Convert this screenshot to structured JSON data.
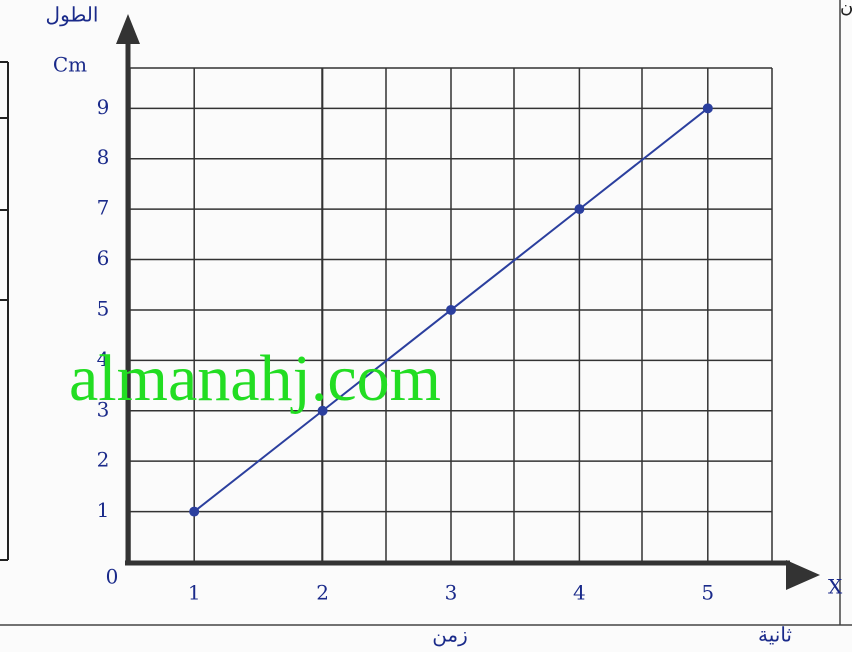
{
  "chart_data": {
    "type": "line",
    "title": "السؤال الأول : العلاقة بين",
    "y_label": "الطول",
    "y_unit": "Cm",
    "x_label": "زمن",
    "x_unit": "ثانية",
    "origin_label": "0",
    "watermark": "almanahj.com",
    "x": [
      1,
      2,
      3,
      4,
      5
    ],
    "series": [
      {
        "name": "الطول",
        "color": "#2b3f9e",
        "values": [
          1,
          3,
          5,
          7,
          9
        ]
      }
    ],
    "xlim": [
      0.5,
      5.5
    ],
    "ylim": [
      0,
      9.8
    ],
    "xticks": [
      1,
      2,
      3,
      4,
      5
    ],
    "yticks": [
      1,
      2,
      3,
      4,
      5,
      6,
      7,
      8,
      9
    ],
    "grid": true
  }
}
